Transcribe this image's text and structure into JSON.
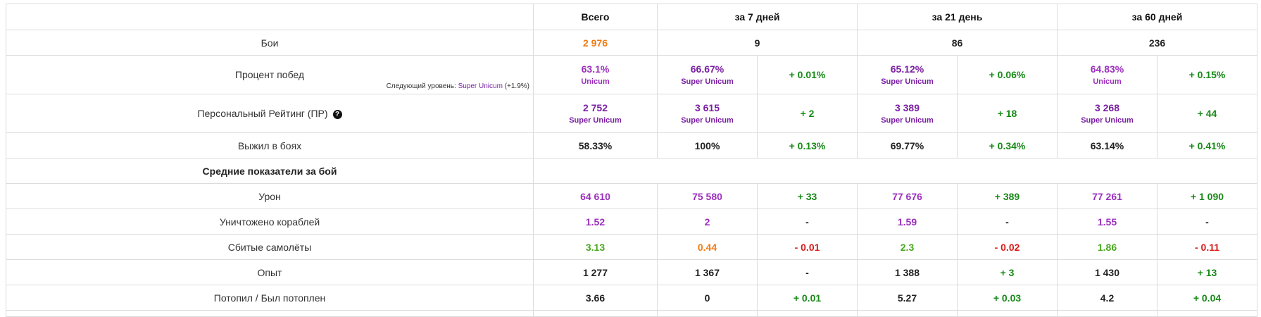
{
  "headers": [
    "Всего",
    "за 7 дней",
    "за 21 день",
    "за 60 дней"
  ],
  "rows": {
    "battles": {
      "label": "Бои",
      "total": "2 976",
      "d7": "9",
      "d21": "86",
      "d60": "236"
    },
    "winrate": {
      "label": "Процент побед",
      "next_prefix": "Следующий уровень:",
      "next_level": "Super Unicum",
      "next_delta": "(+1.9%)",
      "total": "63.1%",
      "total_rank": "Unicum",
      "d7": "66.67%",
      "d7_rank": "Super Unicum",
      "d7_delta": "+ 0.01%",
      "d21": "65.12%",
      "d21_rank": "Super Unicum",
      "d21_delta": "+ 0.06%",
      "d60": "64.83%",
      "d60_rank": "Unicum",
      "d60_delta": "+ 0.15%"
    },
    "pr": {
      "label": "Персональный Рейтинг (ПР)",
      "help_icon": "?",
      "total": "2 752",
      "total_rank": "Super Unicum",
      "d7": "3 615",
      "d7_rank": "Super Unicum",
      "d7_delta": "+ 2",
      "d21": "3 389",
      "d21_rank": "Super Unicum",
      "d21_delta": "+ 18",
      "d60": "3 268",
      "d60_rank": "Super Unicum",
      "d60_delta": "+ 44"
    },
    "survived": {
      "label": "Выжил в боях",
      "total": "58.33%",
      "d7": "100%",
      "d7_delta": "+ 0.13%",
      "d21": "69.77%",
      "d21_delta": "+ 0.34%",
      "d60": "63.14%",
      "d60_delta": "+ 0.41%"
    },
    "section": {
      "label": "Средние показатели за бой"
    },
    "damage": {
      "label": "Урон",
      "total": "64 610",
      "d7": "75 580",
      "d7_delta": "+ 33",
      "d21": "77 676",
      "d21_delta": "+ 389",
      "d60": "77 261",
      "d60_delta": "+ 1 090"
    },
    "kills": {
      "label": "Уничтожено кораблей",
      "total": "1.52",
      "d7": "2",
      "d7_delta": "-",
      "d21": "1.59",
      "d21_delta": "-",
      "d60": "1.55",
      "d60_delta": "-"
    },
    "planes": {
      "label": "Сбитые самолёты",
      "total": "3.13",
      "d7": "0.44",
      "d7_delta": "- 0.01",
      "d21": "2.3",
      "d21_delta": "- 0.02",
      "d60": "1.86",
      "d60_delta": "- 0.11"
    },
    "xp": {
      "label": "Опыт",
      "total": "1 277",
      "d7": "1 367",
      "d7_delta": "-",
      "d21": "1 388",
      "d21_delta": "+ 3",
      "d60": "1 430",
      "d60_delta": "+ 13"
    },
    "kd": {
      "label": "Потопил / Был потоплен",
      "total": "3.66",
      "d7": "0",
      "d7_delta": "+ 0.01",
      "d21": "5.27",
      "d21_delta": "+ 0.03",
      "d60": "4.2",
      "d60_delta": "+ 0.04"
    }
  },
  "colors": {
    "unicum_purple": "#9b2fbd",
    "super_unicum_violet": "#7a1fa2",
    "average_orange": "#f07a12",
    "good_green": "#4aa81e",
    "positive_delta": "#178a17",
    "negative_delta": "#d81b1b",
    "border": "#dcdcdc"
  }
}
